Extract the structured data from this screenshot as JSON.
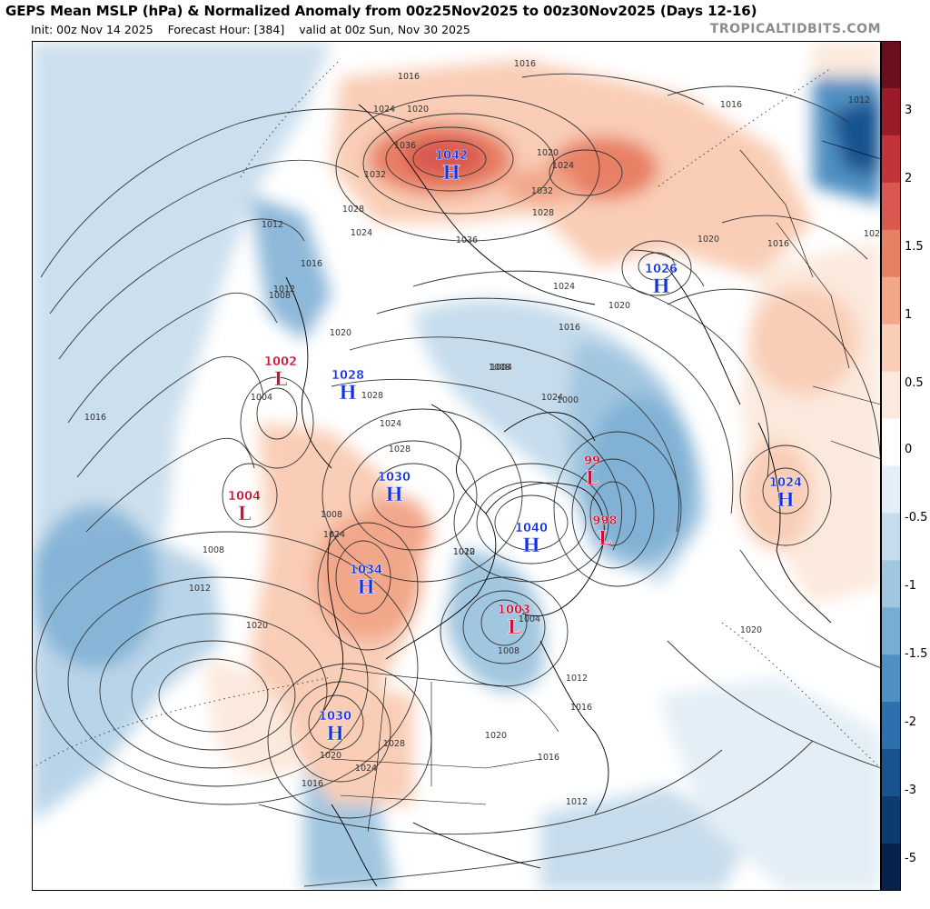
{
  "header": {
    "title": "GEPS Mean MSLP (hPa) & Normalized Anomaly from 00z25Nov2025 to 00z30Nov2025 (Days 12-16)",
    "init": "Init: 00z Nov 14 2025",
    "forecast_hour": "Forecast Hour: [384]",
    "valid": "valid at 00z Sun, Nov 30 2025",
    "watermark": "TROPICALTIDBITS.COM"
  },
  "colorbar": {
    "ticks": [
      "3",
      "2",
      "1.5",
      "1",
      "0.5",
      "0",
      "-0.5",
      "-1",
      "-1.5",
      "-2",
      "-3",
      "-5"
    ],
    "colors": [
      "#6b0f1f",
      "#9a1b2a",
      "#c3333a",
      "#d9584f",
      "#e88066",
      "#f2a78a",
      "#f9cdb6",
      "#fbe9dd",
      "#ffffff",
      "#e3eef6",
      "#c6dcec",
      "#a1c6e0",
      "#79acd2",
      "#4f8fc2",
      "#2e6fae",
      "#18528f",
      "#0d3a70",
      "#07234d"
    ]
  },
  "pressure_centers": [
    {
      "type": "H",
      "value": "1042"
    },
    {
      "type": "H",
      "value": "1026"
    },
    {
      "type": "L",
      "value": "1002"
    },
    {
      "type": "H",
      "value": "1028"
    },
    {
      "type": "L",
      "value": "1004"
    },
    {
      "type": "H",
      "value": "1030"
    },
    {
      "type": "L",
      "value": "99"
    },
    {
      "type": "H",
      "value": "1024"
    },
    {
      "type": "H",
      "value": "1040"
    },
    {
      "type": "L",
      "value": "998"
    },
    {
      "type": "H",
      "value": "1034"
    },
    {
      "type": "L",
      "value": "1003"
    },
    {
      "type": "H",
      "value": "1030"
    }
  ],
  "isobar_labels": [
    "1016",
    "1016",
    "1020",
    "1024",
    "1036",
    "1032",
    "1028",
    "1024",
    "1036",
    "1020",
    "1024",
    "1028",
    "1032",
    "1016",
    "1020",
    "1012",
    "1016",
    "1020",
    "1012",
    "1016",
    "1024",
    "1020",
    "1016",
    "1008",
    "1012",
    "1020",
    "1024",
    "1028",
    "1004",
    "1016",
    "1008",
    "1004",
    "1000",
    "1028",
    "1024",
    "1008",
    "1012",
    "1020",
    "1024",
    "1012",
    "1008",
    "1004",
    "1008",
    "1012",
    "1016",
    "1020",
    "1028",
    "1024",
    "1020",
    "1016",
    "1020",
    "1016",
    "1020",
    "1012"
  ]
}
